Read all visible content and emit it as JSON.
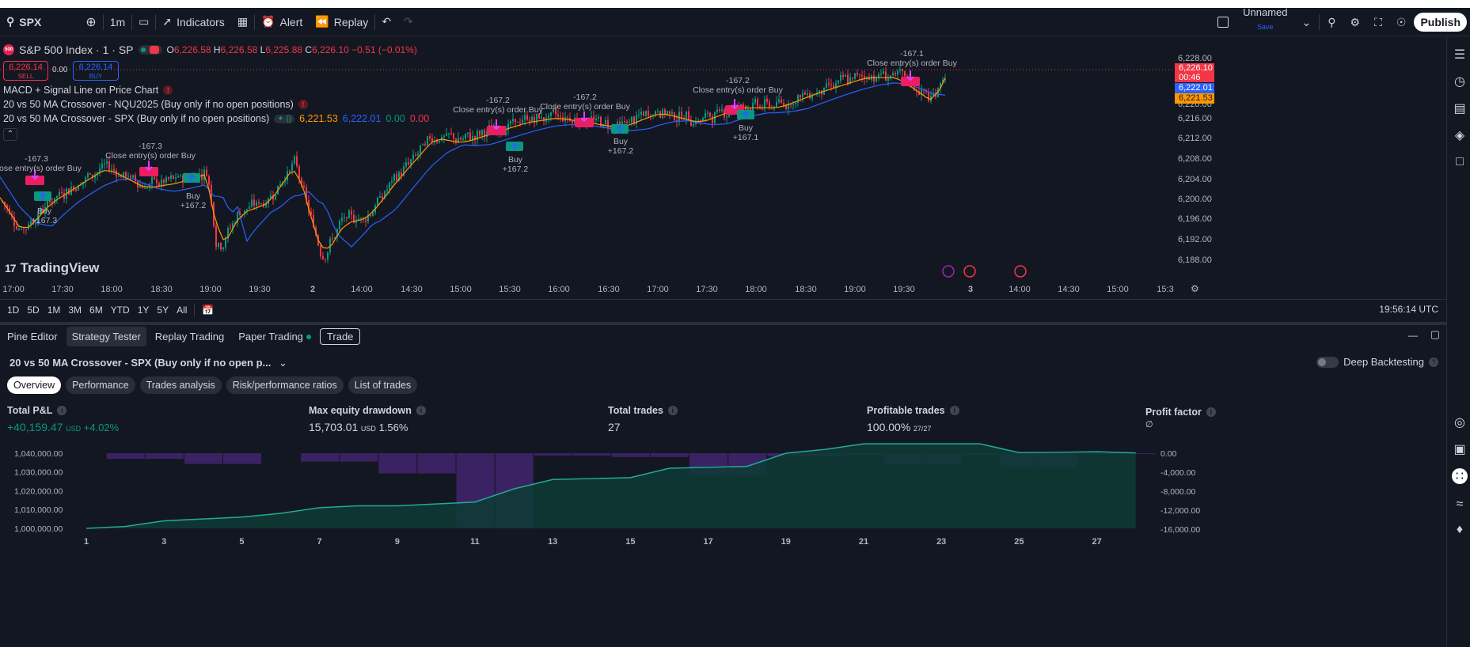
{
  "toolbar": {
    "symbol": "SPX",
    "interval": "1m",
    "indicators": "Indicators",
    "alert": "Alert",
    "replay": "Replay",
    "layout_name": "Unnamed",
    "layout_save": "Save",
    "publish": "Publish"
  },
  "chart": {
    "symbol_title": "S&P 500 Index · 1 · SP",
    "symbol_badge": "500",
    "ohlc": {
      "o_label": "O",
      "o": "6,226.58",
      "h_label": "H",
      "h": "6,226.58",
      "l_label": "L",
      "l": "6,225.88",
      "c_label": "C",
      "c": "6,226.10",
      "change": "−0.51 (−0.01%)"
    },
    "sell": {
      "price": "6,226.14",
      "label": "SELL"
    },
    "buy": {
      "price": "6,226.14",
      "label": "BUY"
    },
    "spread": "0.00",
    "indicators": [
      {
        "name": "MACD + Signal Line on Price Chart"
      },
      {
        "name": "20 vs 50 MA Crossover - NQU2025 (Buy only if no open positions)"
      },
      {
        "name": "20 vs 50 MA Crossover - SPX (Buy only if no open positions)",
        "v1": "6,221.53",
        "v2": "6,222.01",
        "v3": "0.00",
        "v4": "0.00"
      }
    ],
    "logo": "TradingView",
    "price_axis": [
      "6,228.00",
      "6,220.00",
      "6,216.00",
      "6,212.00",
      "6,208.00",
      "6,204.00",
      "6,200.00",
      "6,196.00",
      "6,192.00",
      "6,188.00"
    ],
    "price_tags": {
      "last": "6,226.10",
      "countdown": "00:46",
      "ma_slow": "6,222.01",
      "ma_fast": "6,221.53"
    },
    "time_axis": [
      "17:00",
      "17:30",
      "18:00",
      "18:30",
      "19:00",
      "19:30",
      "2",
      "14:00",
      "14:30",
      "15:00",
      "15:30",
      "16:00",
      "16:30",
      "17:00",
      "17:30",
      "18:00",
      "18:30",
      "19:00",
      "19:30",
      "3",
      "14:00",
      "14:30",
      "15:00",
      "15:3"
    ],
    "annotations": [
      {
        "top": "-167.3",
        "bottom": "Close entry(s) order Buy"
      },
      {
        "top": "-167.3",
        "bottom": "Close entry(s) order Buy"
      },
      {
        "top": "-167.2",
        "bottom": "Close entry(s) order Buy"
      },
      {
        "top": "-167.2",
        "bottom": "Close entry(s) order Buy"
      },
      {
        "top": "-167.2",
        "bottom": "Close entry(s) order Buy"
      },
      {
        "top": "-167.1",
        "bottom": "Close entry(s) order Buy"
      }
    ],
    "buys": [
      {
        "top": "Buy",
        "bottom": "+167.3"
      },
      {
        "top": "Buy",
        "bottom": "+167.2"
      },
      {
        "top": "Buy",
        "bottom": "+167.2"
      },
      {
        "top": "Buy",
        "bottom": "+167.2"
      },
      {
        "top": "Buy",
        "bottom": "+167.1"
      }
    ]
  },
  "range_bar": {
    "ranges": [
      "1D",
      "5D",
      "1M",
      "3M",
      "6M",
      "YTD",
      "1Y",
      "5Y",
      "All"
    ],
    "clock": "19:56:14 UTC"
  },
  "panel": {
    "tabs": [
      "Pine Editor",
      "Strategy Tester",
      "Replay Trading",
      "Paper Trading",
      "Trade"
    ],
    "strategy_title": "20 vs 50 MA Crossover - SPX (Buy only if no open p...",
    "deep_backtesting": "Deep Backtesting",
    "subtabs": [
      "Overview",
      "Performance",
      "Trades analysis",
      "Risk/performance ratios",
      "List of trades"
    ],
    "metrics": {
      "pnl": {
        "label": "Total P&L",
        "value": "+40,159.47",
        "unit": "USD",
        "pct": "+4.02%"
      },
      "drawdown": {
        "label": "Max equity drawdown",
        "value": "15,703.01",
        "unit": "USD",
        "pct": "1.56%"
      },
      "trades": {
        "label": "Total trades",
        "value": "27"
      },
      "profitable": {
        "label": "Profitable trades",
        "value": "100.00%",
        "ratio": "27/27"
      },
      "profit_factor": {
        "label": "Profit factor",
        "value": "∅"
      }
    }
  },
  "chart_data": {
    "type": "area",
    "x": [
      1,
      2,
      3,
      4,
      5,
      6,
      7,
      8,
      9,
      10,
      11,
      12,
      13,
      14,
      15,
      16,
      17,
      18,
      19,
      20,
      21,
      22,
      23,
      24,
      25,
      26,
      27,
      28
    ],
    "left_axis_ticks": [
      "1,040,000.00",
      "1,030,000.00",
      "1,020,000.00",
      "1,010,000.00",
      "1,000,000.00"
    ],
    "right_axis_ticks": [
      "0.00",
      "-4,000.00",
      "-8,000.00",
      "-12,000.00",
      "-16,000.00"
    ],
    "x_ticks": [
      "1",
      "3",
      "5",
      "7",
      "9",
      "11",
      "13",
      "15",
      "17",
      "19",
      "21",
      "23",
      "25",
      "27"
    ],
    "series": [
      {
        "values": [
          1000000,
          1001000,
          1004000,
          1005000,
          1006000,
          1008000,
          1011000,
          1012000,
          1012000,
          1013000,
          1014000,
          1021000,
          1026000,
          1026500,
          1027000,
          1032000,
          1032500,
          1033000,
          1040000,
          1042000,
          1048000,
          1049000,
          1050000,
          1050000,
          1040300,
          1040500,
          1040800,
          1040159
        ]
      },
      {
        "values": [
          0,
          -1200,
          -1200,
          -2300,
          -2300,
          0,
          -1800,
          -1800,
          -4300,
          -4300,
          -15700,
          -16000,
          -500,
          -500,
          -800,
          -800,
          -4700,
          -4700,
          -700,
          -700,
          -300,
          -2400,
          -2400,
          -400,
          -3000,
          -3000,
          -200,
          -200
        ]
      }
    ]
  },
  "colors": {
    "bg": "#131722",
    "up": "#089981",
    "down": "#f23645",
    "accent": "#2962ff",
    "ma_fast": "#ff9800"
  }
}
